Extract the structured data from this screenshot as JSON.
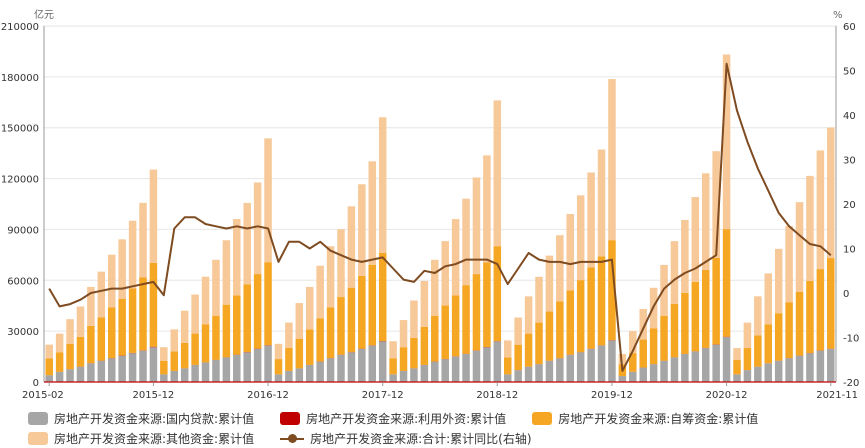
{
  "chart_data": {
    "type": "bar",
    "stacked": true,
    "left_unit": "亿元",
    "right_unit": "%",
    "ylim_left": [
      0,
      210000
    ],
    "yticks_left": [
      0,
      30000,
      60000,
      90000,
      120000,
      150000,
      180000,
      210000
    ],
    "ytick_labels_left": [
      "0",
      "30000",
      "60000",
      "90000",
      "120000",
      "150000",
      "180000",
      "210000"
    ],
    "ylim_right": [
      -20,
      60
    ],
    "yticks_right": [
      -20,
      -10,
      0,
      10,
      20,
      30,
      40,
      50,
      60
    ],
    "ytick_labels_right": [
      "-20",
      "-10",
      "0",
      "10",
      "20",
      "30",
      "40",
      "50",
      "60"
    ],
    "x_tick_labels": [
      "2015-02",
      "2015-12",
      "2016-12",
      "2017-12",
      "2018-12",
      "2019-12",
      "2020-12",
      "2021-11"
    ],
    "grid": true,
    "legend_position": "bottom",
    "categories": [
      "2015-02",
      "2015-03",
      "2015-04",
      "2015-05",
      "2015-06",
      "2015-07",
      "2015-08",
      "2015-09",
      "2015-10",
      "2015-11",
      "2015-12",
      "2016-02",
      "2016-03",
      "2016-04",
      "2016-05",
      "2016-06",
      "2016-07",
      "2016-08",
      "2016-09",
      "2016-10",
      "2016-11",
      "2016-12",
      "2017-02",
      "2017-03",
      "2017-04",
      "2017-05",
      "2017-06",
      "2017-07",
      "2017-08",
      "2017-09",
      "2017-10",
      "2017-11",
      "2017-12",
      "2018-02",
      "2018-03",
      "2018-04",
      "2018-05",
      "2018-06",
      "2018-07",
      "2018-08",
      "2018-09",
      "2018-10",
      "2018-11",
      "2018-12",
      "2019-02",
      "2019-03",
      "2019-04",
      "2019-05",
      "2019-06",
      "2019-07",
      "2019-08",
      "2019-09",
      "2019-10",
      "2019-11",
      "2019-12",
      "2020-02",
      "2020-03",
      "2020-04",
      "2020-05",
      "2020-06",
      "2020-07",
      "2020-08",
      "2020-09",
      "2020-10",
      "2020-11",
      "2020-12",
      "2021-02",
      "2021-03",
      "2021-04",
      "2021-05",
      "2021-06",
      "2021-07",
      "2021-08",
      "2021-09",
      "2021-10",
      "2021-11"
    ],
    "series": [
      {
        "name": "房地产开发资金来源:国内贷款:累计值",
        "type": "bar",
        "color": "#a6a6a6",
        "values": [
          4000,
          6000,
          7500,
          9000,
          11000,
          12500,
          14000,
          15500,
          17000,
          18500,
          20500,
          4500,
          6500,
          8000,
          10000,
          11500,
          13000,
          14500,
          16000,
          17500,
          19500,
          21500,
          4500,
          6500,
          8000,
          10000,
          12000,
          14000,
          16000,
          17500,
          19500,
          21500,
          24000,
          4500,
          6500,
          8000,
          10000,
          12000,
          13500,
          15000,
          16500,
          18500,
          20500,
          24000,
          4500,
          7000,
          9000,
          10500,
          12500,
          14000,
          16000,
          17500,
          19500,
          21500,
          24500,
          3500,
          6000,
          8500,
          10500,
          12500,
          14500,
          16500,
          18000,
          20000,
          22000,
          26500,
          4500,
          7000,
          9000,
          11000,
          12500,
          14000,
          15500,
          17000,
          18500,
          19500
        ]
      },
      {
        "name": "房地产开发资金来源:利用外资:累计值",
        "type": "bar",
        "color": "#c00000",
        "values": [
          25,
          40,
          50,
          60,
          80,
          100,
          110,
          130,
          150,
          170,
          300,
          30,
          50,
          60,
          80,
          90,
          100,
          120,
          130,
          150,
          170,
          200,
          20,
          40,
          50,
          70,
          80,
          100,
          110,
          130,
          150,
          170,
          170,
          30,
          40,
          60,
          70,
          90,
          100,
          110,
          130,
          150,
          170,
          120,
          20,
          30,
          40,
          50,
          60,
          80,
          90,
          100,
          110,
          120,
          180,
          20,
          30,
          40,
          60,
          70,
          80,
          100,
          110,
          120,
          140,
          190,
          20,
          30,
          40,
          50,
          60,
          70,
          80,
          90,
          100,
          110
        ]
      },
      {
        "name": "房地产开发资金来源:自筹资金:累计值",
        "type": "bar",
        "color": "#f5a623",
        "values": [
          10000,
          11500,
          15000,
          17500,
          22000,
          25500,
          30000,
          33500,
          38000,
          43000,
          49500,
          8000,
          11500,
          15000,
          18500,
          22500,
          26000,
          31000,
          35000,
          40000,
          44000,
          49000,
          9000,
          13500,
          17500,
          21000,
          25500,
          30000,
          34000,
          38000,
          43000,
          47500,
          52000,
          9500,
          14000,
          18000,
          22500,
          27000,
          31500,
          36000,
          40500,
          45000,
          50000,
          56000,
          10000,
          15000,
          19500,
          24500,
          29000,
          33500,
          38000,
          42500,
          48000,
          52500,
          59000,
          7000,
          11000,
          16500,
          21000,
          26500,
          31500,
          36000,
          41000,
          46000,
          51000,
          63500,
          8500,
          13000,
          18500,
          23000,
          28000,
          33000,
          37500,
          42500,
          48000,
          53500
        ]
      },
      {
        "name": "房地产开发资金来源:其他资金:累计值",
        "type": "bar",
        "color": "#f7c898",
        "values": [
          8000,
          11000,
          14500,
          18000,
          23000,
          27000,
          31000,
          35000,
          40000,
          44000,
          55000,
          8000,
          13000,
          19000,
          23000,
          28000,
          33000,
          38000,
          45000,
          48000,
          54000,
          73000,
          9000,
          15000,
          21000,
          25000,
          31000,
          36000,
          40000,
          48000,
          54000,
          61000,
          80000,
          10000,
          16000,
          22000,
          27000,
          33000,
          38000,
          45000,
          51000,
          57000,
          63000,
          86000,
          10000,
          16000,
          22000,
          27000,
          33000,
          39000,
          45000,
          50000,
          56000,
          63000,
          95000,
          6000,
          13000,
          18000,
          24000,
          30000,
          37000,
          43000,
          50000,
          57000,
          63000,
          103000,
          7000,
          15000,
          23000,
          30000,
          38000,
          45000,
          53000,
          62000,
          70000,
          77000
        ]
      },
      {
        "name": "房地产开发资金来源:合计:累计同比(右轴)",
        "type": "line",
        "axis": "right",
        "color": "#7f4b21",
        "values": [
          1,
          -3,
          -2.5,
          -1.5,
          0,
          0.5,
          1,
          1,
          1.5,
          2,
          2.5,
          -0.5,
          14.5,
          17,
          17,
          15.5,
          15,
          14.5,
          15,
          14.5,
          15,
          14.5,
          7,
          11.5,
          11.5,
          10,
          11.5,
          9.5,
          8.5,
          7.5,
          7,
          7.5,
          8,
          5.5,
          3,
          2.5,
          5,
          4.5,
          6,
          6.5,
          7.5,
          7.5,
          7.5,
          6.5,
          2,
          5.5,
          9,
          7.5,
          7,
          7,
          6.5,
          7,
          7,
          7,
          7.5,
          -17.5,
          -13,
          -8,
          -3,
          1,
          3,
          4.5,
          5.5,
          7,
          8.5,
          51.5,
          41,
          34,
          28,
          23,
          18,
          15,
          13,
          11,
          10.5,
          8.5
        ]
      }
    ]
  },
  "legend": [
    {
      "label": "房地产开发资金来源:国内贷款:累计值",
      "color": "#a6a6a6",
      "kind": "bar"
    },
    {
      "label": "房地产开发资金来源:利用外资:累计值",
      "color": "#c00000",
      "kind": "bar"
    },
    {
      "label": "房地产开发资金来源:自筹资金:累计值",
      "color": "#f5a623",
      "kind": "bar"
    },
    {
      "label": "房地产开发资金来源:其他资金:累计值",
      "color": "#f7c898",
      "kind": "bar"
    },
    {
      "label": "房地产开发资金来源:合计:累计同比(右轴)",
      "color": "#7f4b21",
      "kind": "line"
    }
  ]
}
